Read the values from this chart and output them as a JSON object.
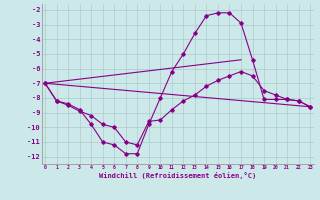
{
  "bg_color": "#cce8e8",
  "line_color": "#880088",
  "grid_color": "#b8d8d8",
  "xlabel": "Windchill (Refroidissement éolien,°C)",
  "xlim": [
    -0.3,
    23.3
  ],
  "ylim": [
    -12.5,
    -1.6
  ],
  "yticks": [
    -2,
    -3,
    -4,
    -5,
    -6,
    -7,
    -8,
    -9,
    -10,
    -11,
    -12
  ],
  "xticks": [
    0,
    1,
    2,
    3,
    4,
    5,
    6,
    7,
    8,
    9,
    10,
    11,
    12,
    13,
    14,
    15,
    16,
    17,
    18,
    19,
    20,
    21,
    22,
    23
  ],
  "curve1_x": [
    0,
    1,
    2,
    3,
    4,
    5,
    6,
    7,
    8,
    9,
    10,
    11,
    12,
    13,
    14,
    15,
    16,
    17,
    18,
    19,
    20,
    21,
    22,
    23
  ],
  "curve1_y": [
    -7.0,
    -8.2,
    -8.4,
    -8.8,
    -9.8,
    -11.0,
    -11.2,
    -11.8,
    -11.8,
    -9.8,
    -8.0,
    -6.2,
    -5.0,
    -3.6,
    -2.4,
    -2.2,
    -2.2,
    -2.9,
    -5.4,
    -8.1,
    -8.1,
    -8.1,
    -8.2,
    -8.6
  ],
  "curve2_x": [
    0,
    1,
    2,
    3,
    4,
    5,
    6,
    7,
    8,
    9,
    10,
    11,
    12,
    13,
    14,
    15,
    16,
    17,
    18,
    19,
    20,
    21,
    22,
    23
  ],
  "curve2_y": [
    -7.0,
    -8.2,
    -8.5,
    -8.9,
    -9.2,
    -9.8,
    -10.0,
    -11.0,
    -11.2,
    -9.6,
    -9.5,
    -8.8,
    -8.2,
    -7.8,
    -7.2,
    -6.8,
    -6.5,
    -6.2,
    -6.5,
    -7.5,
    -7.8,
    -8.1,
    -8.2,
    -8.6
  ],
  "line3_x": [
    0,
    23
  ],
  "line3_y": [
    -7.0,
    -8.6
  ],
  "line4_x": [
    0,
    17
  ],
  "line4_y": [
    -7.0,
    -5.4
  ]
}
